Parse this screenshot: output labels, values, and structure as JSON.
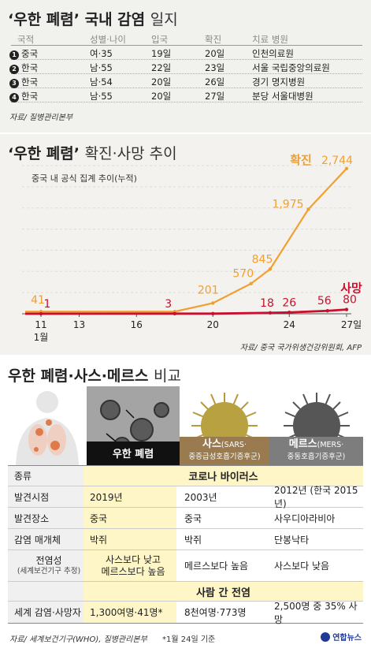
{
  "section1": {
    "title_bold": "‘우한 폐렴’ 국내 감염",
    "title_light": "일지",
    "headers": [
      "국적",
      "성별·나이",
      "입국",
      "확진",
      "치료 병원"
    ],
    "rows": [
      {
        "n": "1",
        "nationality": "중국",
        "sex_age": "여·35",
        "entry": "19일",
        "confirmed": "20일",
        "hospital": "인천의료원"
      },
      {
        "n": "2",
        "nationality": "한국",
        "sex_age": "남·55",
        "entry": "22일",
        "confirmed": "23일",
        "hospital": "서울 국립중앙의료원"
      },
      {
        "n": "3",
        "nationality": "한국",
        "sex_age": "남·54",
        "entry": "20일",
        "confirmed": "26일",
        "hospital": "경기 명지병원"
      },
      {
        "n": "4",
        "nationality": "한국",
        "sex_age": "남·55",
        "entry": "20일",
        "confirmed": "27일",
        "hospital": "분당 서울대병원"
      }
    ],
    "source": "자료/ 질병관리본부"
  },
  "section2": {
    "title_bold": "‘우한 폐렴’",
    "title_light": "확진·사망 추이",
    "subtitle": "중국 내 공식 집계 추이(누적)",
    "source": "자료/ 중국 국가위생건강위원회, AFP"
  },
  "chart_data": {
    "type": "line",
    "x": [
      11,
      18,
      20,
      23,
      24,
      25,
      26,
      27
    ],
    "x_ticks": [
      "11",
      "13",
      "16",
      "20",
      "24",
      "27일"
    ],
    "x_tick_values": [
      11,
      13,
      16,
      20,
      24,
      27
    ],
    "x_sub_label": "1월",
    "grid": true,
    "series": [
      {
        "name": "확진",
        "color": "#f0a030",
        "values": [
          41,
          41,
          201,
          570,
          845,
          1975,
          2744
        ],
        "x": [
          11,
          18,
          20,
          22,
          23,
          25,
          27
        ],
        "labels": [
          "41",
          "",
          "201",
          "570",
          "845",
          "1,975",
          "2,744"
        ]
      },
      {
        "name": "사망",
        "color": "#c8102e",
        "values": [
          1,
          3,
          3,
          18,
          26,
          56,
          80
        ],
        "x": [
          11,
          18,
          20,
          23,
          24,
          26,
          27
        ],
        "labels": [
          "1",
          "3",
          "",
          "18",
          "26",
          "56",
          "80"
        ]
      }
    ],
    "ylim": [
      0,
      2800
    ]
  },
  "section3": {
    "title_bold": "우한 폐렴·사스·메르스",
    "title_light": "비교",
    "tags": [
      {
        "name": "우한 폐렴",
        "sub": "",
        "color": "#111111"
      },
      {
        "name": "사스",
        "paren": "(SARS·",
        "sub": "중증급성호흡기증후군)",
        "color": "#9a7b4f"
      },
      {
        "name": "메르스",
        "paren": "(MERS·",
        "sub": "중동호흡기증후군)",
        "color": "#7d7d7d"
      }
    ],
    "rows": [
      {
        "label": "종류",
        "merged": "코로나 바이러스"
      },
      {
        "label": "발견시점",
        "c1": "2019년",
        "c2": "2003년",
        "c3": "2012년 (한국 2015년)"
      },
      {
        "label": "발견장소",
        "c1": "중국",
        "c2": "중국",
        "c3": "사우디아라비아"
      },
      {
        "label": "감염 매개체",
        "c1": "박쥐",
        "c2": "박쥐",
        "c3": "단봉낙타"
      },
      {
        "label": "전염성",
        "label_sub": "(세계보건기구 추정)",
        "c1a": "사스보다 낮고",
        "c1b": "메르스보다 높음",
        "c2": "메르스보다 높음",
        "c3": "사스보다 낮음"
      },
      {
        "merged": "사람 간 전염"
      },
      {
        "label": "세계 감염·사망자",
        "c1": "1,300여명·41명*",
        "c2": "8천여명·773명",
        "c3": "2,500명 중 35% 사망"
      }
    ],
    "source": "자료/ 세계보건기구(WHO), 질병관리본부",
    "note": "*1월 24일 기준",
    "logo": "연합뉴스"
  }
}
